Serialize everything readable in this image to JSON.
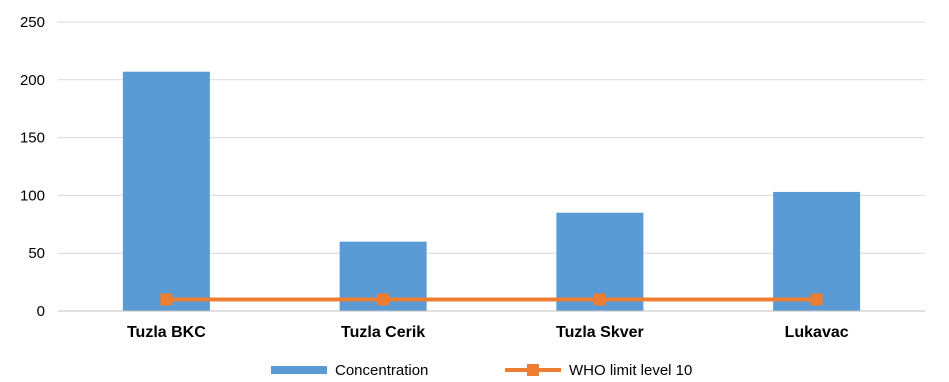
{
  "chart_data": {
    "type": "bar",
    "categories": [
      "Tuzla BKC",
      "Tuzla Cerik",
      "Tuzla Skver",
      "Lukavac"
    ],
    "series": [
      {
        "name": "Concentration",
        "type": "bar",
        "values": [
          207,
          60,
          85,
          103
        ],
        "color": "#5B9BD5"
      },
      {
        "name": "WHO limit level 10",
        "type": "line",
        "values": [
          10,
          10,
          10,
          10
        ],
        "color": "#ED7D31",
        "marker": "square"
      }
    ],
    "title": "",
    "xlabel": "",
    "ylabel": "",
    "ylim": [
      0,
      250
    ],
    "yticks": [
      "0",
      "50",
      "100",
      "150",
      "200",
      "250"
    ],
    "grid": true,
    "legend": "bottom"
  }
}
